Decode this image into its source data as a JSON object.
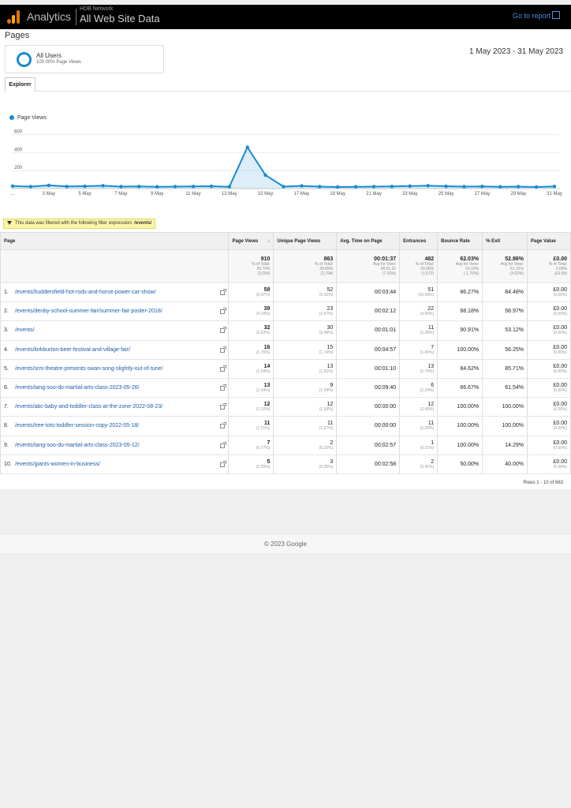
{
  "header": {
    "app_name": "Analytics",
    "account": "HDB Network",
    "property": "All Web Site Data",
    "go_to_report": "Go to report",
    "go_to_report_icon": "external-link-icon"
  },
  "page_title": "Pages",
  "segment": {
    "name": "All Users",
    "sub": "100.00% Page Views",
    "ring_color": "#1a8ad0"
  },
  "date_range": "1 May 2023 - 31 May 2023",
  "tabs": [
    "Explorer"
  ],
  "chart_data": {
    "type": "line",
    "series": [
      {
        "name": "Page Views",
        "color": "#1a8ad0",
        "values": [
          28,
          22,
          36,
          24,
          26,
          32,
          22,
          24,
          20,
          22,
          24,
          26,
          20,
          460,
          150,
          22,
          30,
          22,
          18,
          20,
          22,
          24,
          28,
          32,
          26,
          22,
          24,
          20,
          22,
          18,
          24
        ]
      }
    ],
    "x_tick_labels": [
      "...",
      "3 May",
      "5 May",
      "7 May",
      "9 May",
      "11 May",
      "13 May",
      "15 May",
      "17 May",
      "19 May",
      "21 May",
      "23 May",
      "25 May",
      "27 May",
      "29 May",
      "31 May"
    ],
    "y_tick_labels": [
      "200",
      "400",
      "600"
    ],
    "ylim": [
      0,
      650
    ],
    "grid": true,
    "legend_position": "top-left"
  },
  "filter_note": {
    "text": "This data was filtered with the following filter expression: ",
    "expression": "/events/"
  },
  "table": {
    "headers": [
      "Page",
      "Page Views",
      "Unique Page Views",
      "Avg. Time on Page",
      "Entrances",
      "Bounce Rate",
      "% Exit",
      "Page Value"
    ],
    "sort_icon": "arrow-down-icon",
    "totals": [
      {
        "main": "910",
        "sub1": "% of Total:",
        "sub2": "29.70%",
        "sub3": "(3,064)"
      },
      {
        "main": "863",
        "sub1": "% of Total:",
        "sub2": "30.89%",
        "sub3": "(2,794)"
      },
      {
        "main": "00:01:37",
        "sub1": "Avg for View:",
        "sub2": "00:01:31",
        "sub3": "(7.16%)"
      },
      {
        "main": "482",
        "sub1": "% of Total:",
        "sub2": "30.66%",
        "sub3": "(1,572)"
      },
      {
        "main": "62.03%",
        "sub1": "Avg for View:",
        "sub2": "63.10%",
        "sub3": "(-1.70%)"
      },
      {
        "main": "52.86%",
        "sub1": "Avg for View:",
        "sub2": "51.31%",
        "sub3": "(3.02%)"
      },
      {
        "main": "£0.00",
        "sub1": "% of Total:",
        "sub2": "0.00%",
        "sub3": "(£0.00)"
      }
    ],
    "rows": [
      {
        "rank": "1.",
        "page": "/events/huddersfield-hot-rods-and-horse-power-car-show/",
        "pv": "58",
        "pv_pct": "(6.37%)",
        "upv": "52",
        "upv_pct": "(6.03%)",
        "time": "00:03:44",
        "ent": "51",
        "ent_pct": "(10.58%)",
        "bounce": "86.27%",
        "exit": "84.48%",
        "value": "£0.00",
        "value_pct": "(0.00%)"
      },
      {
        "rank": "2.",
        "page": "/events/denby-school-summer-fair/summer-fair-poster-2018/",
        "pv": "39",
        "pv_pct": "(4.29%)",
        "upv": "23",
        "upv_pct": "(2.67%)",
        "time": "00:02:12",
        "ent": "22",
        "ent_pct": "(4.56%)",
        "bounce": "68.18%",
        "exit": "58.97%",
        "value": "£0.00",
        "value_pct": "(0.00%)"
      },
      {
        "rank": "3.",
        "page": "/events/",
        "pv": "32",
        "pv_pct": "(3.52%)",
        "upv": "30",
        "upv_pct": "(3.48%)",
        "time": "00:01:01",
        "ent": "11",
        "ent_pct": "(2.28%)",
        "bounce": "90.91%",
        "exit": "53.12%",
        "value": "£0.00",
        "value_pct": "(0.00%)"
      },
      {
        "rank": "4.",
        "page": "/events/kirkburton-beer-festival-and-village-fair/",
        "pv": "16",
        "pv_pct": "(1.76%)",
        "upv": "15",
        "upv_pct": "(1.74%)",
        "time": "00:04:57",
        "ent": "7",
        "ent_pct": "(1.45%)",
        "bounce": "100.00%",
        "exit": "56.25%",
        "value": "£0.00",
        "value_pct": "(0.00%)"
      },
      {
        "rank": "5.",
        "page": "/events/srm-theatre-presents-swan-song-slightly-out-of-tune/",
        "pv": "14",
        "pv_pct": "(1.54%)",
        "upv": "13",
        "upv_pct": "(1.51%)",
        "time": "00:01:10",
        "ent": "13",
        "ent_pct": "(2.70%)",
        "bounce": "84.62%",
        "exit": "85.71%",
        "value": "£0.00",
        "value_pct": "(0.00%)"
      },
      {
        "rank": "6.",
        "page": "/events/tang-soo-do-martial-arts-class-2023-05-26/",
        "pv": "13",
        "pv_pct": "(1.43%)",
        "upv": "9",
        "upv_pct": "(1.04%)",
        "time": "00:09:40",
        "ent": "6",
        "ent_pct": "(1.24%)",
        "bounce": "66.67%",
        "exit": "61.54%",
        "value": "£0.00",
        "value_pct": "(0.00%)"
      },
      {
        "rank": "7.",
        "page": "/events/abc-baby-and-toddler-class-at-the-zone-2022-08-23/",
        "pv": "12",
        "pv_pct": "(1.32%)",
        "upv": "12",
        "upv_pct": "(1.39%)",
        "time": "00:00:00",
        "ent": "12",
        "ent_pct": "(2.49%)",
        "bounce": "100.00%",
        "exit": "100.00%",
        "value": "£0.00",
        "value_pct": "(0.00%)"
      },
      {
        "rank": "8.",
        "page": "/events/tree-tots-toddler-session-copy-2022-05-18/",
        "pv": "11",
        "pv_pct": "(1.21%)",
        "upv": "11",
        "upv_pct": "(1.27%)",
        "time": "00:00:00",
        "ent": "11",
        "ent_pct": "(2.28%)",
        "bounce": "100.00%",
        "exit": "100.00%",
        "value": "£0.00",
        "value_pct": "(0.00%)"
      },
      {
        "rank": "9.",
        "page": "/events/tang-soo-do-martial-arts-class-2023-05-12/",
        "pv": "7",
        "pv_pct": "(0.77%)",
        "upv": "2",
        "upv_pct": "(0.23%)",
        "time": "00:02:57",
        "ent": "1",
        "ent_pct": "(0.21%)",
        "bounce": "100.00%",
        "exit": "14.29%",
        "value": "£0.00",
        "value_pct": "(0.00%)"
      },
      {
        "rank": "10.",
        "page": "/events/giants-women-in-business/",
        "pv": "5",
        "pv_pct": "(0.55%)",
        "upv": "3",
        "upv_pct": "(0.35%)",
        "time": "00:02:58",
        "ent": "2",
        "ent_pct": "(0.41%)",
        "bounce": "50.00%",
        "exit": "40.00%",
        "value": "£0.00",
        "value_pct": "(0.00%)"
      }
    ]
  },
  "rows_info": "Rows 1 - 10 of 663",
  "copyright": "© 2023 Google"
}
